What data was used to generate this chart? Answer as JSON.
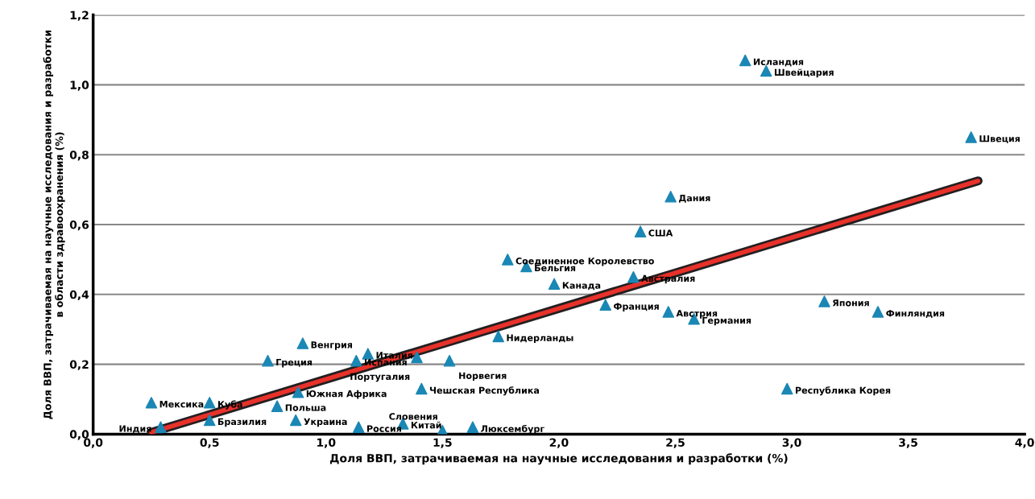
{
  "chart_data": {
    "type": "scatter",
    "xlabel": "Доля ВВП, затрачиваемая на научные исследования и разработки (%)",
    "ylabel": "Доля ВВП, затрачиваемая на научные исследования и разработки\nв области здравоохранения (%)",
    "xlim": [
      0,
      4.0
    ],
    "ylim": [
      0,
      1.2
    ],
    "xticks": [
      {
        "value": 0,
        "label": "0,0"
      },
      {
        "value": 0.5,
        "label": "0,5"
      },
      {
        "value": 1.0,
        "label": "1,0"
      },
      {
        "value": 1.5,
        "label": "1,5"
      },
      {
        "value": 2.0,
        "label": "2,0"
      },
      {
        "value": 2.5,
        "label": "2,5"
      },
      {
        "value": 3.0,
        "label": "3,0"
      },
      {
        "value": 3.5,
        "label": "3,5"
      },
      {
        "value": 4.0,
        "label": "4,0"
      }
    ],
    "yticks": [
      {
        "value": 0,
        "label": "0,0"
      },
      {
        "value": 0.2,
        "label": "0,2"
      },
      {
        "value": 0.4,
        "label": "0,4"
      },
      {
        "value": 0.6,
        "label": "0,6"
      },
      {
        "value": 0.8,
        "label": "0,8"
      },
      {
        "value": 1.0,
        "label": "1,0"
      },
      {
        "value": 1.2,
        "label": "1,2"
      }
    ],
    "grid": "y",
    "series": [
      {
        "color": "#1a87b5",
        "marker": "triangle",
        "x": [
          2.8,
          2.89,
          3.77,
          2.48,
          2.35,
          1.78,
          1.86,
          1.98,
          2.32,
          2.2,
          2.47,
          2.58,
          3.14,
          3.37,
          2.98,
          1.74,
          1.53,
          1.39,
          1.18,
          1.13,
          0.9,
          0.75,
          1.41,
          0.25,
          0.5,
          0.79,
          0.88,
          0.87,
          0.29,
          0.5,
          1.14,
          1.33,
          1.5,
          1.63
        ],
        "values": [
          1.07,
          1.04,
          0.85,
          0.68,
          0.58,
          0.5,
          0.48,
          0.43,
          0.45,
          0.37,
          0.35,
          0.33,
          0.38,
          0.35,
          0.13,
          0.28,
          0.21,
          0.22,
          0.23,
          0.21,
          0.26,
          0.21,
          0.13,
          0.09,
          0.09,
          0.08,
          0.12,
          0.04,
          0.02,
          0.04,
          0.02,
          0.03,
          0.01,
          0.02
        ]
      },
      {
        "type": "line",
        "color": "#e8312a",
        "x": [
          0.25,
          3.8
        ],
        "values": [
          0.005,
          0.725
        ]
      }
    ],
    "annotations": [
      {
        "text": "Исландия",
        "x": 2.8,
        "y": 1.07
      },
      {
        "text": "Швейцария",
        "x": 2.89,
        "y": 1.04
      },
      {
        "text": "Швеция",
        "x": 3.77,
        "y": 0.85
      },
      {
        "text": "Дания",
        "x": 2.48,
        "y": 0.68
      },
      {
        "text": "США",
        "x": 2.35,
        "y": 0.58
      },
      {
        "text": "Соединенное Королевство",
        "x": 1.78,
        "y": 0.5
      },
      {
        "text": "Бельгия",
        "x": 1.86,
        "y": 0.48
      },
      {
        "text": "Канада",
        "x": 1.98,
        "y": 0.43
      },
      {
        "text": "Австралия",
        "x": 2.32,
        "y": 0.45
      },
      {
        "text": "Франция",
        "x": 2.2,
        "y": 0.37
      },
      {
        "text": "Австрия",
        "x": 2.47,
        "y": 0.35
      },
      {
        "text": "Германия",
        "x": 2.58,
        "y": 0.33
      },
      {
        "text": "Япония",
        "x": 3.14,
        "y": 0.38
      },
      {
        "text": "Финляндия",
        "x": 3.37,
        "y": 0.35
      },
      {
        "text": "Республика Корея",
        "x": 2.98,
        "y": 0.13
      },
      {
        "text": "Нидерланды",
        "x": 1.74,
        "y": 0.28
      },
      {
        "text": "Норвегия",
        "x": 1.53,
        "y": 0.21
      },
      {
        "text": "Португалия",
        "x": 1.39,
        "y": 0.22
      },
      {
        "text": "Италия",
        "x": 1.18,
        "y": 0.23
      },
      {
        "text": "Испания",
        "x": 1.13,
        "y": 0.21
      },
      {
        "text": "Венгрия",
        "x": 0.9,
        "y": 0.26
      },
      {
        "text": "Греция",
        "x": 0.75,
        "y": 0.21
      },
      {
        "text": "Чешская Республика",
        "x": 1.41,
        "y": 0.13
      },
      {
        "text": "Мексика",
        "x": 0.25,
        "y": 0.09
      },
      {
        "text": "Куба",
        "x": 0.5,
        "y": 0.09
      },
      {
        "text": "Польша",
        "x": 0.79,
        "y": 0.08
      },
      {
        "text": "Южная Африка",
        "x": 0.88,
        "y": 0.12
      },
      {
        "text": "Украина",
        "x": 0.87,
        "y": 0.04
      },
      {
        "text": "Индия",
        "x": 0.29,
        "y": 0.02
      },
      {
        "text": "Бразилия",
        "x": 0.5,
        "y": 0.04
      },
      {
        "text": "Россия",
        "x": 1.14,
        "y": 0.02
      },
      {
        "text": "Китай",
        "x": 1.33,
        "y": 0.03
      },
      {
        "text": "Словения",
        "x": 1.5,
        "y": 0.01
      },
      {
        "text": "Люксембург",
        "x": 1.63,
        "y": 0.02
      }
    ]
  }
}
